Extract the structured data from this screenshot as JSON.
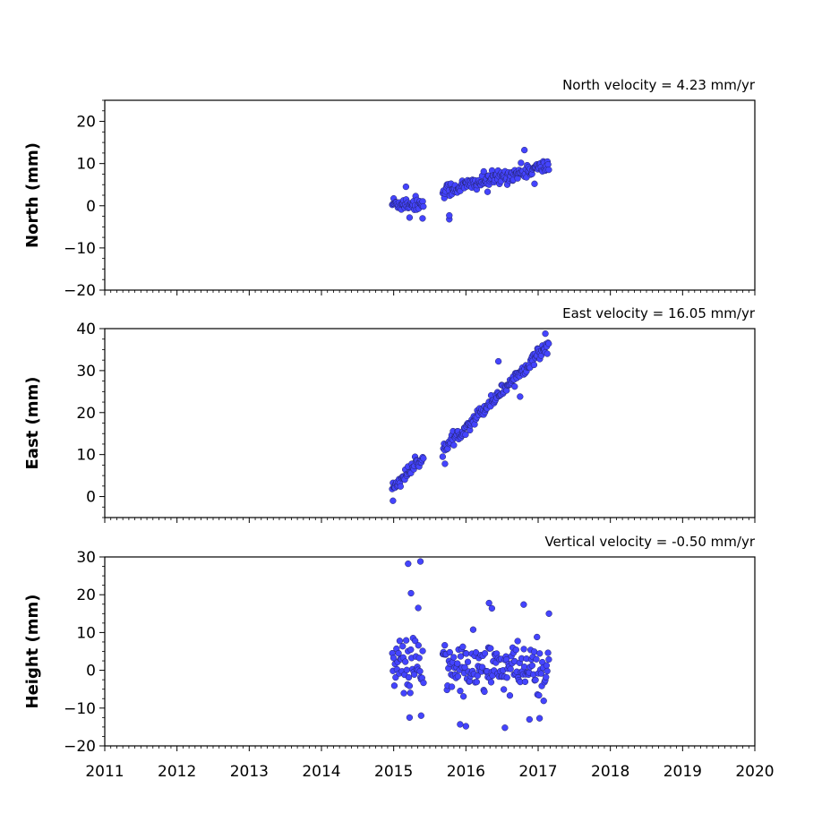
{
  "chart_data": [
    {
      "type": "scatter",
      "title": "North velocity = 4.23 mm/yr",
      "ylabel": "North (mm)",
      "xlim": [
        2011,
        2020
      ],
      "ylim": [
        -20,
        25
      ],
      "yticks": [
        -20,
        -10,
        0,
        10,
        20
      ],
      "xticks": [
        2011,
        2012,
        2013,
        2014,
        2015,
        2016,
        2017,
        2018,
        2019,
        2020
      ],
      "show_xtick_labels": false,
      "grid": false,
      "marker_color": "#4444ff",
      "series": [
        {
          "segments": [
            {
              "x_start": 2014.98,
              "x_end": 2015.42,
              "y_start": 0.5,
              "y_end": 0.5,
              "spread": 1.6
            },
            {
              "x_start": 2015.68,
              "x_end": 2017.15,
              "y_start": 3.5,
              "y_end": 9.5,
              "spread": 1.6
            }
          ],
          "outliers": [
            [
              2016.81,
              13.2
            ],
            [
              2015.77,
              -3.2
            ],
            [
              2015.77,
              -2.3
            ],
            [
              2015.17,
              4.5
            ],
            [
              2015.22,
              -2.8
            ],
            [
              2015.4,
              -3.0
            ],
            [
              2016.3,
              3.3
            ],
            [
              2016.95,
              5.2
            ]
          ]
        }
      ]
    },
    {
      "type": "scatter",
      "title": "East velocity = 16.05 mm/yr",
      "ylabel": "East (mm)",
      "xlim": [
        2011,
        2020
      ],
      "ylim": [
        -5,
        40
      ],
      "yticks": [
        0,
        10,
        20,
        30,
        40
      ],
      "xticks": [
        2011,
        2012,
        2013,
        2014,
        2015,
        2016,
        2017,
        2018,
        2019,
        2020
      ],
      "show_xtick_labels": false,
      "grid": false,
      "marker_color": "#4444ff",
      "series": [
        {
          "segments": [
            {
              "x_start": 2014.98,
              "x_end": 2015.42,
              "y_start": 2.0,
              "y_end": 9.5,
              "spread": 1.3
            },
            {
              "x_start": 2015.68,
              "x_end": 2017.15,
              "y_start": 11.0,
              "y_end": 36.5,
              "spread": 1.3
            }
          ],
          "outliers": [
            [
              2014.99,
              -1.0
            ],
            [
              2015.71,
              7.8
            ],
            [
              2016.45,
              32.2
            ],
            [
              2016.75,
              23.8
            ],
            [
              2017.1,
              38.8
            ]
          ]
        }
      ]
    },
    {
      "type": "scatter",
      "title": "Vertical velocity = -0.50 mm/yr",
      "ylabel": "Height (mm)",
      "xlim": [
        2011,
        2020
      ],
      "ylim": [
        -20,
        30
      ],
      "yticks": [
        -20,
        -10,
        0,
        10,
        20,
        30
      ],
      "xticks": [
        2011,
        2012,
        2013,
        2014,
        2015,
        2016,
        2017,
        2018,
        2019,
        2020
      ],
      "show_xtick_labels": true,
      "grid": false,
      "marker_color": "#4444ff",
      "series": [
        {
          "segments": [
            {
              "x_start": 2014.98,
              "x_end": 2015.42,
              "y_start": 1.0,
              "y_end": 1.0,
              "spread": 7.0
            },
            {
              "x_start": 2015.68,
              "x_end": 2017.15,
              "y_start": 0.5,
              "y_end": 0.0,
              "spread": 6.5
            }
          ],
          "outliers": [
            [
              2015.2,
              28.2
            ],
            [
              2015.37,
              28.8
            ],
            [
              2015.24,
              20.4
            ],
            [
              2016.32,
              17.8
            ],
            [
              2016.8,
              17.4
            ],
            [
              2016.36,
              16.4
            ],
            [
              2015.34,
              16.5
            ],
            [
              2017.15,
              15.0
            ],
            [
              2016.54,
              -15.2
            ],
            [
              2016.0,
              -14.8
            ],
            [
              2015.92,
              -14.3
            ],
            [
              2016.88,
              -13.0
            ],
            [
              2017.02,
              -12.7
            ],
            [
              2015.22,
              -12.5
            ],
            [
              2015.38,
              -12.0
            ]
          ]
        }
      ]
    }
  ]
}
